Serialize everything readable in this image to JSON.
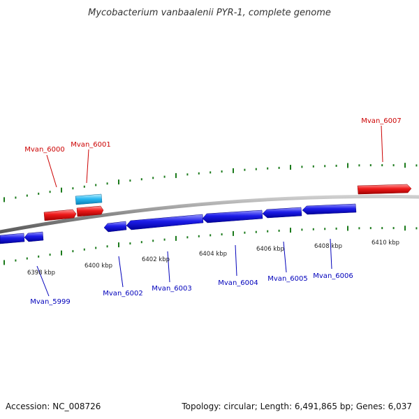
{
  "title": "Mycobacterium vanbaalenii PYR-1, complete genome",
  "footer": {
    "accession": "Accession: NC_008726",
    "summary": "Topology: circular; Length: 6,491,865 bp; Genes: 6,037"
  },
  "colors": {
    "forward_gene": "#e8131b",
    "reverse_gene": "#1515e6",
    "highlight_gene": "#27b7f0",
    "backbone": "#8a8a8a",
    "tick": "#1b7a1b",
    "forward_label": "#cc0000",
    "reverse_label": "#0000bb"
  },
  "genes": [
    {
      "name": "Mvan_5999",
      "strand": "-"
    },
    {
      "name": "Mvan_6000",
      "strand": "+"
    },
    {
      "name": "Mvan_6001",
      "strand": "+"
    },
    {
      "name": "Mvan_6002",
      "strand": "-"
    },
    {
      "name": "Mvan_6003",
      "strand": "-"
    },
    {
      "name": "Mvan_6004",
      "strand": "-"
    },
    {
      "name": "Mvan_6005",
      "strand": "-"
    },
    {
      "name": "Mvan_6006",
      "strand": "-"
    },
    {
      "name": "Mvan_6007",
      "strand": "+"
    }
  ],
  "scale": {
    "labels": [
      "6398 kbp",
      "6400 kbp",
      "6402 kbp",
      "6404 kbp",
      "6406 kbp",
      "6408 kbp",
      "6410 kbp"
    ]
  }
}
